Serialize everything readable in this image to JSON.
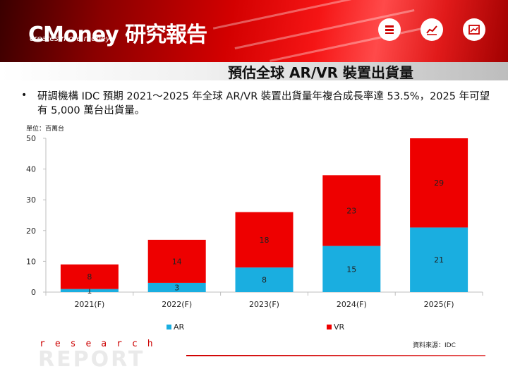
{
  "header": {
    "brand": "CMoney 研究報告",
    "tagline": "creates more money",
    "icons": [
      "stack-icon",
      "line-chart-icon",
      "image-chart-icon"
    ]
  },
  "page": {
    "title": "預估全球 AR/VR 裝置出貨量",
    "bullet": "研調機構 IDC 預期 2021～2025 年全球 AR/VR 裝置出貨量年複合成長率達 53.5%，2025 年可望有 5,000 萬台出貨量。",
    "unit": "單位：百萬台",
    "source": "資料來源：IDC"
  },
  "footer": {
    "research": "research",
    "report": "REPORT"
  },
  "colors": {
    "ar": "#1aaee0",
    "vr": "#ee0000",
    "axis": "#bfbfbf"
  },
  "chart_data": {
    "type": "bar",
    "stacked": true,
    "categories": [
      "2021(F)",
      "2022(F)",
      "2023(F)",
      "2024(F)",
      "2025(F)"
    ],
    "series": [
      {
        "name": "AR",
        "values": [
          1,
          3,
          8,
          15,
          21
        ]
      },
      {
        "name": "VR",
        "values": [
          8,
          14,
          18,
          23,
          29
        ]
      }
    ],
    "ylim": [
      0,
      50
    ],
    "yticks": [
      0,
      10,
      20,
      30,
      40,
      50
    ],
    "legend_position": "bottom",
    "grid": false
  }
}
